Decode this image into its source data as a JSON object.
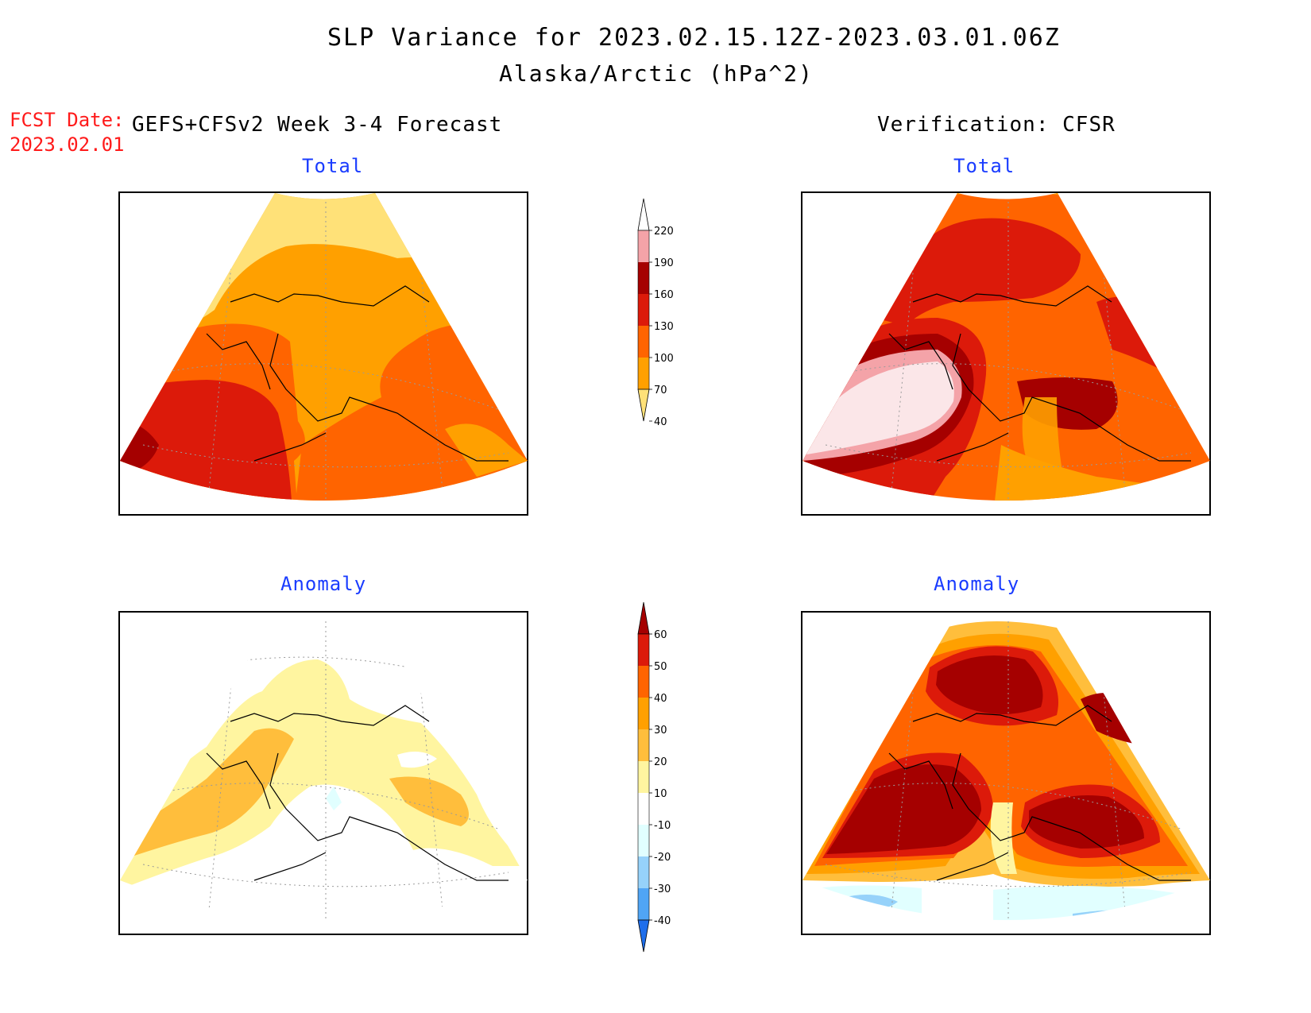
{
  "header": {
    "title": "SLP Variance for 2023.02.15.12Z-2023.03.01.06Z",
    "subtitle": "Alaska/Arctic (hPa^2)"
  },
  "fcst": {
    "label": "FCST Date:",
    "date": "2023.02.01"
  },
  "left_heading": "GEFS+CFSv2 Week 3-4 Forecast",
  "right_heading": "Verification: CFSR",
  "panels": {
    "fcst_total": "Total",
    "obs_total": "Total",
    "fcst_anom": "Anomaly",
    "obs_anom": "Anomaly"
  },
  "colorbars": {
    "total": {
      "labels": [
        "220",
        "190",
        "160",
        "130",
        "100",
        "70",
        "40"
      ],
      "colors": [
        "#ffffff",
        "#f4a3a8",
        "#a50000",
        "#dc1a0a",
        "#ff6400",
        "#ffa000",
        "#ffe178"
      ]
    },
    "anomaly": {
      "labels": [
        "60",
        "50",
        "40",
        "30",
        "20",
        "10",
        "-10",
        "-20",
        "-30",
        "-40"
      ],
      "colors": [
        "#a50000",
        "#dc1a0a",
        "#ff6400",
        "#ffa000",
        "#ffbe3c",
        "#fff5a0",
        "#ffffff",
        "#e1ffff",
        "#96d2fa",
        "#50a5f5",
        "#1e6eeb"
      ]
    }
  },
  "colors": {
    "accent_red": "#ff1a1a",
    "panel_label_blue": "#1a3cff"
  }
}
